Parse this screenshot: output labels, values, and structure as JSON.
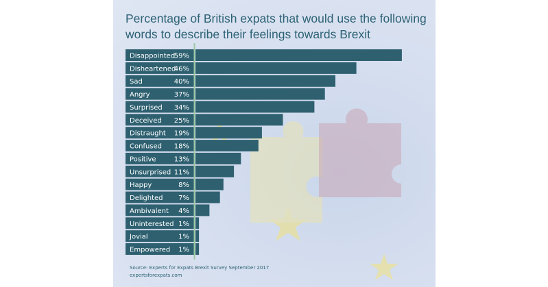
{
  "colors": {
    "bar": "#2e6070",
    "divider": "#9cc9a3",
    "title": "#2d6275",
    "background": "#d5deef"
  },
  "chart_data": {
    "type": "bar",
    "orientation": "horizontal",
    "title": "Percentage of British expats that would use the following words to describe their feelings towards Brexit",
    "categories": [
      "Disappointed",
      "Disheartened",
      "Sad",
      "Angry",
      "Surprised",
      "Deceived",
      "Distraught",
      "Confused",
      "Positive",
      "Unsurprised",
      "Happy",
      "Delighted",
      "Ambivalent",
      "Uninterested",
      "Jovial",
      "Empowered"
    ],
    "values": [
      59,
      46,
      40,
      37,
      34,
      25,
      19,
      18,
      13,
      11,
      8,
      7,
      4,
      1,
      1,
      1
    ],
    "data_labels": [
      "59%",
      "46%",
      "40%",
      "37%",
      "34%",
      "25%",
      "19%",
      "18%",
      "13%",
      "11%",
      "8%",
      "7%",
      "4%",
      "1%",
      "1%",
      "1%"
    ],
    "unit": "%",
    "grid": false,
    "legend": "none"
  },
  "source": {
    "line1": "Source: Experts for Expats Brexit Survey September 2017",
    "line2": "expertsforexpats.com"
  }
}
